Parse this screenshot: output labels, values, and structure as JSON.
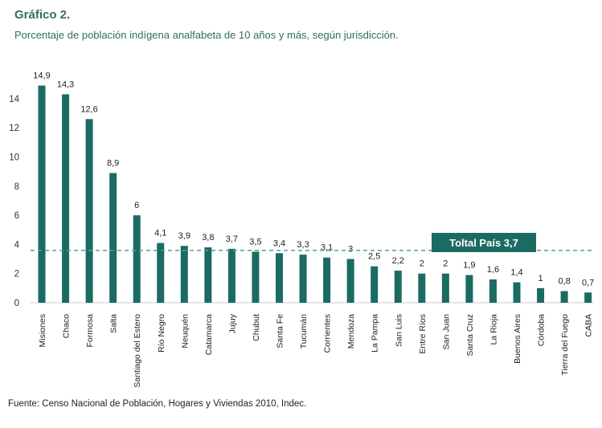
{
  "header": {
    "title": "Gráfico 2.",
    "subtitle": "Porcentaje de población indígena analfabeta de 10 años y más, según jurisdicción."
  },
  "footer": {
    "source": "Fuente: Censo Nacional de Población, Hogares y Viviendas 2010, Indec."
  },
  "colors": {
    "bar": "#1b6b63",
    "reference_line": "#4aa39a",
    "reference_box": "#1b6b63",
    "title": "#2f6f62"
  },
  "chart_data": {
    "type": "bar",
    "title": "Porcentaje de población indígena analfabeta de 10 años y más, según jurisdicción.",
    "xlabel": "",
    "ylabel": "",
    "ylim": [
      0,
      16
    ],
    "yticks": [
      0,
      2,
      4,
      6,
      8,
      10,
      12,
      14
    ],
    "grid": false,
    "categories": [
      "Misiones",
      "Chaco",
      "Formosa",
      "Salta",
      "Santiago del Estero",
      "Río Negro",
      "Neuquén",
      "Catamarca",
      "Jujuy",
      "Chubut",
      "Santa Fe",
      "Tucumán",
      "Corrientes",
      "Mendoza",
      "La Pampa",
      "San Luis",
      "Entre Ríos",
      "San Juan",
      "Santa Cruz",
      "La Rioja",
      "Buenos Aires",
      "Córdoba",
      "Tierra del Fuego",
      "CABA"
    ],
    "values": [
      14.9,
      14.3,
      12.6,
      8.9,
      6,
      4.1,
      3.9,
      3.8,
      3.7,
      3.5,
      3.4,
      3.3,
      3.1,
      3,
      2.5,
      2.2,
      2,
      2,
      1.9,
      1.6,
      1.4,
      1,
      0.8,
      0.7
    ],
    "value_labels": [
      "14,9",
      "14,3",
      "12,6",
      "8,9",
      "6",
      "4,1",
      "3,9",
      "3,8",
      "3,7",
      "3,5",
      "3,4",
      "3,3",
      "3,1",
      "3",
      "2,5",
      "2,2",
      "2",
      "2",
      "1,9",
      "1,6",
      "1,4",
      "1",
      "0,8",
      "0,7"
    ],
    "reference_line": {
      "value": 3.7,
      "label": "Toltal País 3,7"
    }
  }
}
